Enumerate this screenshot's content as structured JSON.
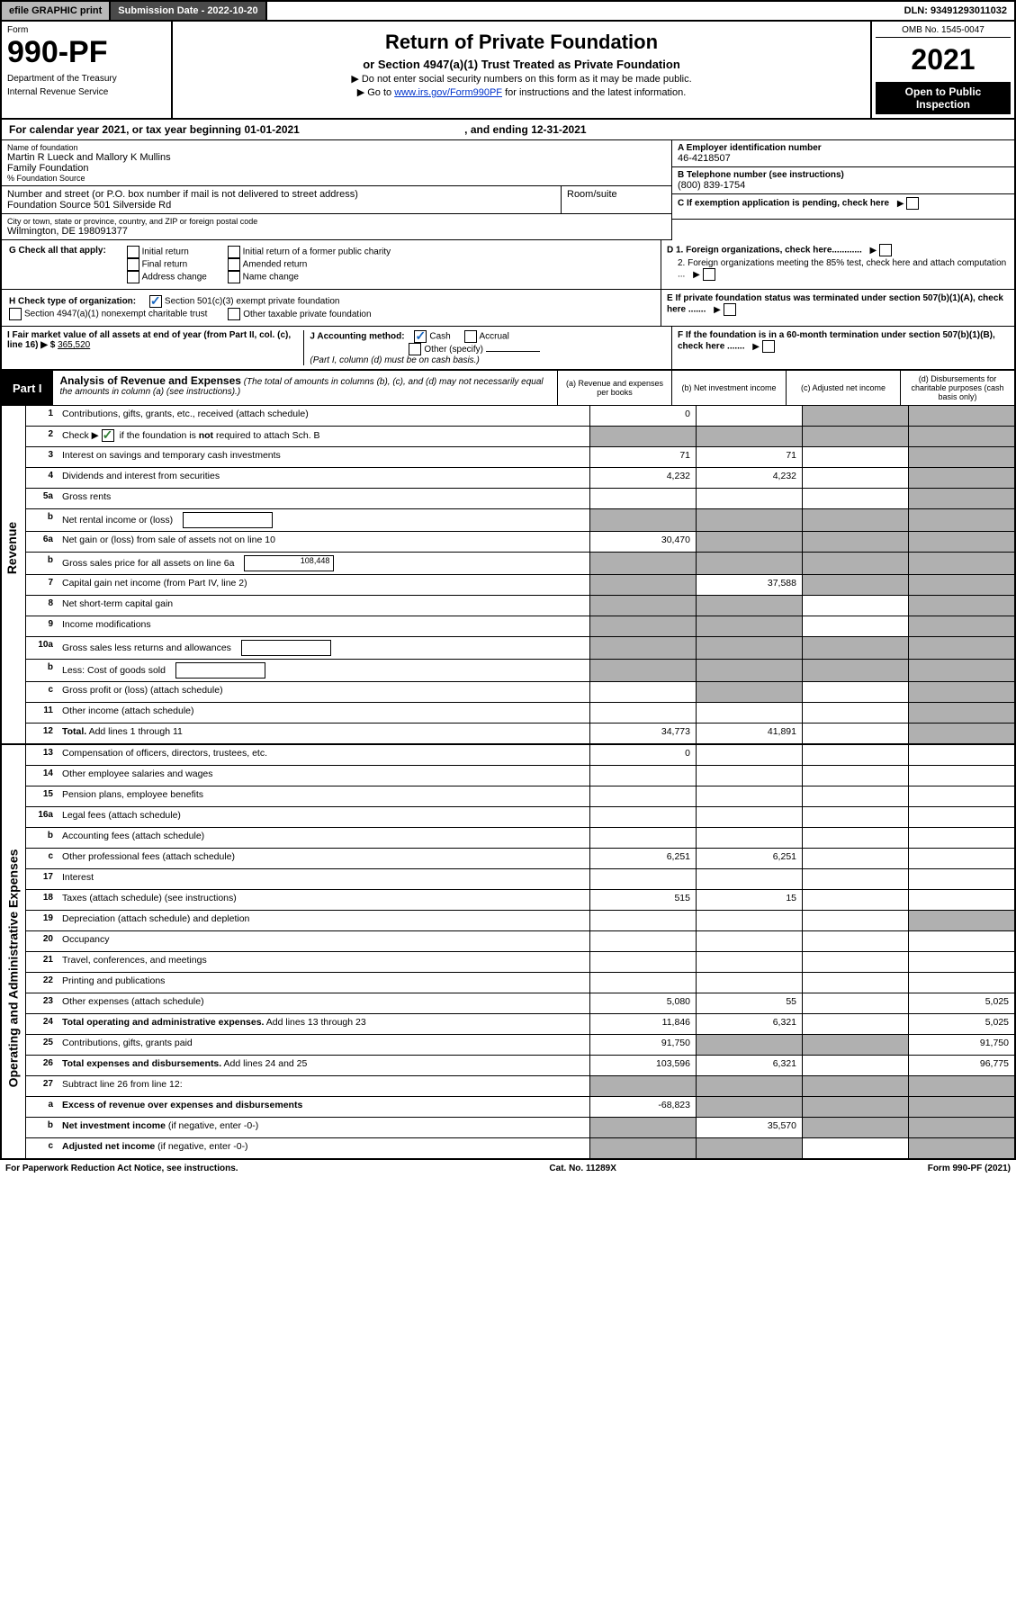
{
  "topbar": {
    "efile": "efile GRAPHIC print",
    "submission": "Submission Date - 2022-10-20",
    "dln": "DLN: 93491293011032"
  },
  "header": {
    "form_label": "Form",
    "form_number": "990-PF",
    "dept": "Department of the Treasury",
    "irs": "Internal Revenue Service",
    "title": "Return of Private Foundation",
    "subtitle": "or Section 4947(a)(1) Trust Treated as Private Foundation",
    "instr1": "▶ Do not enter social security numbers on this form as it may be made public.",
    "instr2_prefix": "▶ Go to ",
    "instr2_link": "www.irs.gov/Form990PF",
    "instr2_suffix": " for instructions and the latest information.",
    "omb": "OMB No. 1545-0047",
    "year": "2021",
    "open": "Open to Public Inspection"
  },
  "calendar": {
    "text_prefix": "For calendar year 2021, or tax year beginning ",
    "begin": "01-01-2021",
    "text_mid": " , and ending ",
    "end": "12-31-2021"
  },
  "info": {
    "name_label": "Name of foundation",
    "name_val1": "Martin R Lueck and Mallory K Mullins",
    "name_val2": "Family Foundation",
    "name_val3": "% Foundation Source",
    "addr_label": "Number and street (or P.O. box number if mail is not delivered to street address)",
    "addr_val": "Foundation Source 501 Silverside Rd",
    "room_label": "Room/suite",
    "room_val": "",
    "city_label": "City or town, state or province, country, and ZIP or foreign postal code",
    "city_val": "Wilmington, DE 198091377",
    "ein_label": "A Employer identification number",
    "ein_val": "46-4218507",
    "tel_label": "B Telephone number (see instructions)",
    "tel_val": "(800) 839-1754",
    "c_label": "C If exemption application is pending, check here",
    "d1_label": "D 1. Foreign organizations, check here............",
    "d2_label": "2. Foreign organizations meeting the 85% test, check here and attach computation ...",
    "e_label": "E If private foundation status was terminated under section 507(b)(1)(A), check here .......",
    "f_label": "F  If the foundation is in a 60-month termination under section 507(b)(1)(B), check here ......."
  },
  "g": {
    "label": "G Check all that apply:",
    "opt1": "Initial return",
    "opt2": "Final return",
    "opt3": "Address change",
    "opt4": "Initial return of a former public charity",
    "opt5": "Amended return",
    "opt6": "Name change"
  },
  "h": {
    "label": "H Check type of organization:",
    "opt1": "Section 501(c)(3) exempt private foundation",
    "opt2": "Section 4947(a)(1) nonexempt charitable trust",
    "opt3": "Other taxable private foundation"
  },
  "i": {
    "label": "I Fair market value of all assets at end of year (from Part II, col. (c), line 16) ▶ $",
    "val": "365,520"
  },
  "j": {
    "label": "J Accounting method:",
    "opt1": "Cash",
    "opt2": "Accrual",
    "opt3": "Other (specify)",
    "note": "(Part I, column (d) must be on cash basis.)"
  },
  "part1": {
    "label": "Part I",
    "title": "Analysis of Revenue and Expenses",
    "note": "(The total of amounts in columns (b), (c), and (d) may not necessarily equal the amounts in column (a) (see instructions).)",
    "col_a": "(a) Revenue and expenses per books",
    "col_b": "(b) Net investment income",
    "col_c": "(c) Adjusted net income",
    "col_d": "(d) Disbursements for charitable purposes (cash basis only)"
  },
  "side_labels": {
    "revenue": "Revenue",
    "expenses": "Operating and Administrative Expenses"
  },
  "rows": [
    {
      "no": "1",
      "desc": "Contributions, gifts, grants, etc., received (attach schedule)",
      "a": "0",
      "b": "",
      "c_grey": true,
      "d_grey": true
    },
    {
      "no": "2",
      "desc": "Check ▶ ☑ if the foundation is <b>not</b> required to attach Sch. B",
      "a_grey": true,
      "b_grey": true,
      "c_grey": true,
      "d_grey": true,
      "check_green": true
    },
    {
      "no": "3",
      "desc": "Interest on savings and temporary cash investments",
      "a": "71",
      "b": "71",
      "d_grey": true
    },
    {
      "no": "4",
      "desc": "Dividends and interest from securities",
      "a": "4,232",
      "b": "4,232",
      "d_grey": true
    },
    {
      "no": "5a",
      "desc": "Gross rents",
      "d_grey": true
    },
    {
      "no": "b",
      "desc": "Net rental income or (loss)",
      "inline_box": "",
      "a_grey": true,
      "b_grey": true,
      "c_grey": true,
      "d_grey": true
    },
    {
      "no": "6a",
      "desc": "Net gain or (loss) from sale of assets not on line 10",
      "a": "30,470",
      "b_grey": true,
      "c_grey": true,
      "d_grey": true
    },
    {
      "no": "b",
      "desc": "Gross sales price for all assets on line 6a",
      "inline_box": "108,448",
      "a_grey": true,
      "b_grey": true,
      "c_grey": true,
      "d_grey": true
    },
    {
      "no": "7",
      "desc": "Capital gain net income (from Part IV, line 2)",
      "a_grey": true,
      "b": "37,588",
      "c_grey": true,
      "d_grey": true
    },
    {
      "no": "8",
      "desc": "Net short-term capital gain",
      "a_grey": true,
      "b_grey": true,
      "d_grey": true
    },
    {
      "no": "9",
      "desc": "Income modifications",
      "a_grey": true,
      "b_grey": true,
      "d_grey": true
    },
    {
      "no": "10a",
      "desc": "Gross sales less returns and allowances",
      "inline_box": "",
      "a_grey": true,
      "b_grey": true,
      "c_grey": true,
      "d_grey": true
    },
    {
      "no": "b",
      "desc": "Less: Cost of goods sold",
      "inline_box": "",
      "a_grey": true,
      "b_grey": true,
      "c_grey": true,
      "d_grey": true
    },
    {
      "no": "c",
      "desc": "Gross profit or (loss) (attach schedule)",
      "b_grey": true,
      "d_grey": true
    },
    {
      "no": "11",
      "desc": "Other income (attach schedule)",
      "d_grey": true
    },
    {
      "no": "12",
      "desc": "<b>Total.</b> Add lines 1 through 11",
      "a": "34,773",
      "b": "41,891",
      "d_grey": true
    }
  ],
  "exp_rows": [
    {
      "no": "13",
      "desc": "Compensation of officers, directors, trustees, etc.",
      "a": "0"
    },
    {
      "no": "14",
      "desc": "Other employee salaries and wages"
    },
    {
      "no": "15",
      "desc": "Pension plans, employee benefits"
    },
    {
      "no": "16a",
      "desc": "Legal fees (attach schedule)"
    },
    {
      "no": "b",
      "desc": "Accounting fees (attach schedule)"
    },
    {
      "no": "c",
      "desc": "Other professional fees (attach schedule)",
      "a": "6,251",
      "b": "6,251"
    },
    {
      "no": "17",
      "desc": "Interest"
    },
    {
      "no": "18",
      "desc": "Taxes (attach schedule) (see instructions)",
      "a": "515",
      "b": "15"
    },
    {
      "no": "19",
      "desc": "Depreciation (attach schedule) and depletion",
      "d_grey": true
    },
    {
      "no": "20",
      "desc": "Occupancy"
    },
    {
      "no": "21",
      "desc": "Travel, conferences, and meetings"
    },
    {
      "no": "22",
      "desc": "Printing and publications"
    },
    {
      "no": "23",
      "desc": "Other expenses (attach schedule)",
      "a": "5,080",
      "b": "55",
      "d": "5,025"
    },
    {
      "no": "24",
      "desc": "<b>Total operating and administrative expenses.</b> Add lines 13 through 23",
      "a": "11,846",
      "b": "6,321",
      "d": "5,025"
    },
    {
      "no": "25",
      "desc": "Contributions, gifts, grants paid",
      "a": "91,750",
      "b_grey": true,
      "c_grey": true,
      "d": "91,750"
    },
    {
      "no": "26",
      "desc": "<b>Total expenses and disbursements.</b> Add lines 24 and 25",
      "a": "103,596",
      "b": "6,321",
      "d": "96,775"
    },
    {
      "no": "27",
      "desc": "Subtract line 26 from line 12:",
      "a_grey": true,
      "b_grey": true,
      "c_grey": true,
      "d_grey": true
    },
    {
      "no": "a",
      "desc": "<b>Excess of revenue over expenses and disbursements</b>",
      "a": "-68,823",
      "b_grey": true,
      "c_grey": true,
      "d_grey": true
    },
    {
      "no": "b",
      "desc": "<b>Net investment income</b> (if negative, enter -0-)",
      "a_grey": true,
      "b": "35,570",
      "c_grey": true,
      "d_grey": true
    },
    {
      "no": "c",
      "desc": "<b>Adjusted net income</b> (if negative, enter -0-)",
      "a_grey": true,
      "b_grey": true,
      "d_grey": true
    }
  ],
  "footer": {
    "left": "For Paperwork Reduction Act Notice, see instructions.",
    "mid": "Cat. No. 11289X",
    "right": "Form 990-PF (2021)"
  },
  "colors": {
    "grey_cell": "#b0b0b0",
    "topbar_grey": "#b8b8b8",
    "topbar_dark": "#4a4a4a",
    "check_green": "#2e7d32",
    "link_blue": "#0033cc"
  }
}
